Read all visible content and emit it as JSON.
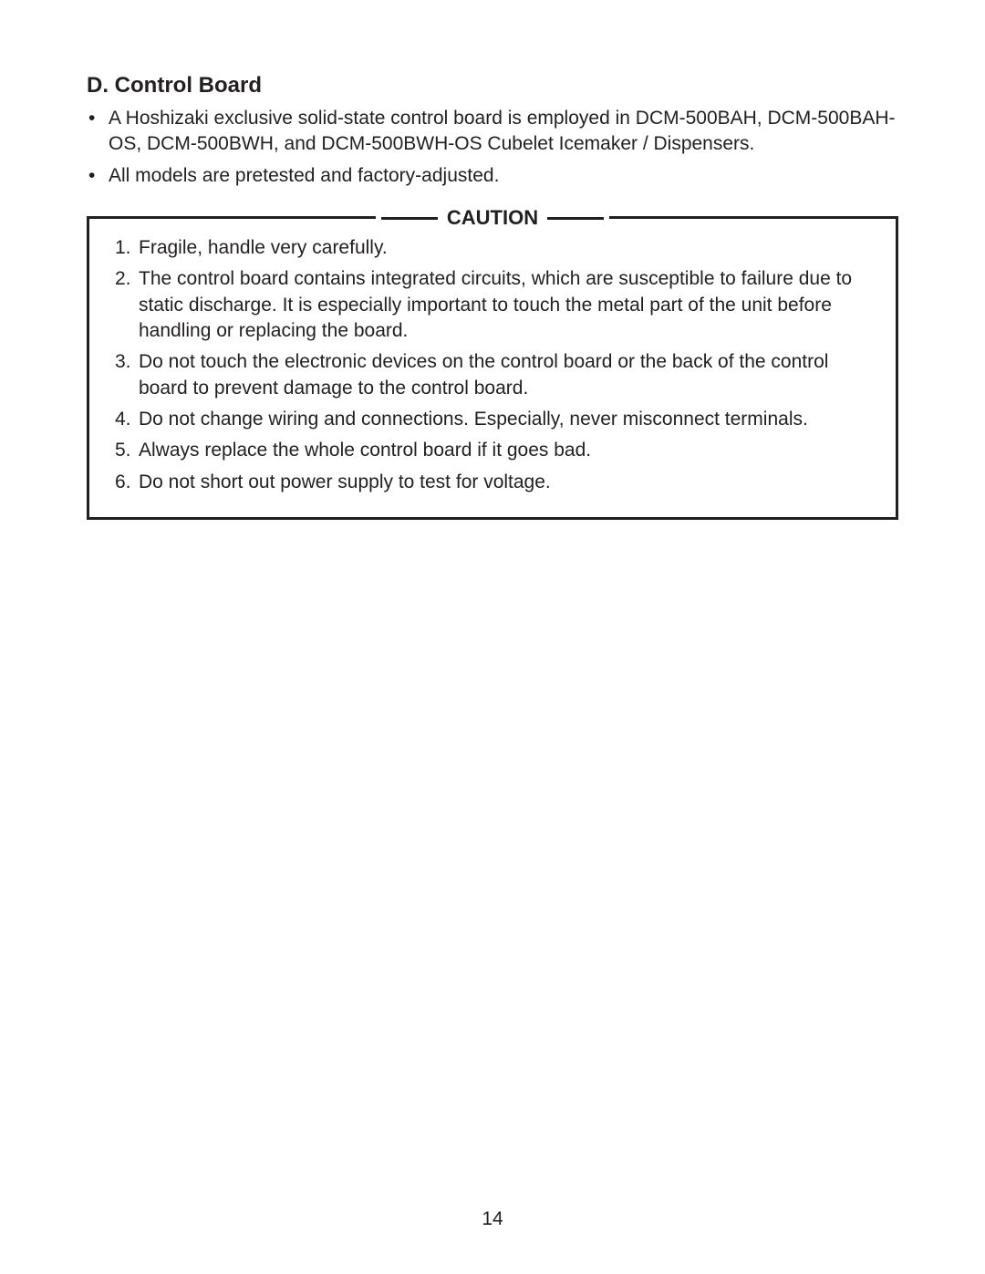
{
  "heading": "D. Control Board",
  "bullets": [
    "A Hoshizaki exclusive solid-state control board is employed in DCM-500BAH, DCM-500BAH-OS, DCM-500BWH, and DCM-500BWH-OS Cubelet Icemaker / Dispensers.",
    "All models are pretested and factory-adjusted."
  ],
  "caution": {
    "title": "CAUTION",
    "items": [
      {
        "num": "1.",
        "text": "Fragile, handle very carefully."
      },
      {
        "num": "2.",
        "text": "The control board contains integrated circuits, which are susceptible to failure due to static discharge. It is especially important to touch the metal part of the unit before handling or replacing the board."
      },
      {
        "num": "3.",
        "text": "Do not touch the electronic devices on the control board or the back of the control board to prevent damage to the control board."
      },
      {
        "num": "4.",
        "text": "Do not change wiring and connections. Especially, never misconnect terminals."
      },
      {
        "num": "5.",
        "text": "Always replace the whole control board if it goes bad."
      },
      {
        "num": "6.",
        "text": "Do not short out power supply to test for voltage."
      }
    ]
  },
  "pageNumber": "14",
  "colors": {
    "text": "#231f20",
    "background": "#ffffff",
    "border": "#231f20"
  }
}
